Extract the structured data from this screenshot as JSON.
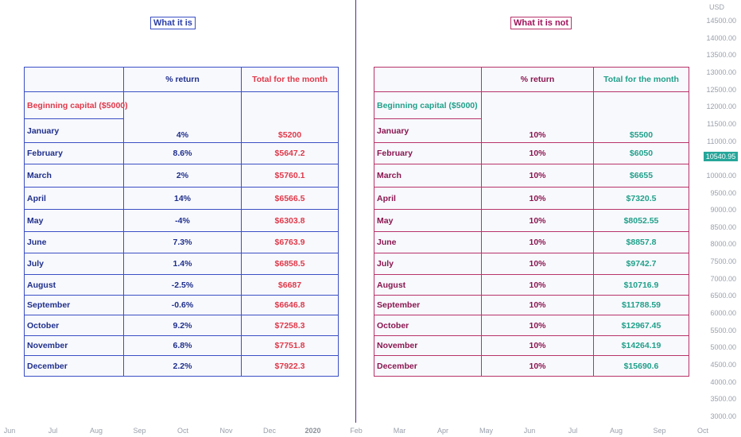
{
  "labels": {
    "left": "What it is",
    "right": "What it is not"
  },
  "left_table": {
    "header": [
      "",
      "% return",
      "Total for the month"
    ],
    "beginning": "Beginning capital ($5000)",
    "rows": [
      [
        "January",
        "4%",
        "$5200"
      ],
      [
        "February",
        "8.6%",
        "$5647.2"
      ],
      [
        "March",
        "2%",
        "$5760.1"
      ],
      [
        "April",
        "14%",
        "$6566.5"
      ],
      [
        "May",
        "-4%",
        "$6303.8"
      ],
      [
        "June",
        "7.3%",
        "$6763.9"
      ],
      [
        "July",
        "1.4%",
        "$6858.5"
      ],
      [
        "August",
        "-2.5%",
        "$6687"
      ],
      [
        "September",
        "-0.6%",
        "$6646.8"
      ],
      [
        "October",
        "9.2%",
        "$7258.3"
      ],
      [
        "November",
        "6.8%",
        "$7751.8"
      ],
      [
        "December",
        "2.2%",
        "$7922.3"
      ]
    ]
  },
  "right_table": {
    "header": [
      "",
      "% return",
      "Total for the month"
    ],
    "beginning": "Beginning capital ($5000)",
    "rows": [
      [
        "January",
        "10%",
        "$5500"
      ],
      [
        "February",
        "10%",
        "$6050"
      ],
      [
        "March",
        "10%",
        "$6655"
      ],
      [
        "April",
        "10%",
        "$7320.5"
      ],
      [
        "May",
        "10%",
        "$8052.55"
      ],
      [
        "June",
        "10%",
        "$8857.8"
      ],
      [
        "July",
        "10%",
        "$9742.7"
      ],
      [
        "August",
        "10%",
        "$10716.9"
      ],
      [
        "September",
        "10%",
        "$11788.59"
      ],
      [
        "October",
        "10%",
        "$12967.45"
      ],
      [
        "November",
        "10%",
        "$14264.19"
      ],
      [
        "December",
        "10%",
        "$15690.6"
      ]
    ]
  },
  "chart_data": {
    "type": "table",
    "currency": "USD",
    "y_ticks": [
      "14500.00",
      "14000.00",
      "13500.00",
      "13000.00",
      "12500.00",
      "12000.00",
      "11500.00",
      "11000.00",
      "10500.00",
      "10000.00",
      "9500.00",
      "9000.00",
      "8500.00",
      "8000.00",
      "7500.00",
      "7000.00",
      "6500.00",
      "6000.00",
      "5500.00",
      "5000.00",
      "4500.00",
      "4000.00",
      "3500.00",
      "3000.00"
    ],
    "ylim": [
      3000,
      14500
    ],
    "last_price": "10540.95",
    "last_price_value": 10540.95,
    "x_ticks": [
      "Jun",
      "Jul",
      "Aug",
      "Sep",
      "Oct",
      "Nov",
      "Dec",
      "2020",
      "Feb",
      "Mar",
      "Apr",
      "May",
      "Jun",
      "Jul",
      "Aug",
      "Sep",
      "Oct"
    ],
    "x_bold": "2020"
  },
  "colors": {
    "left_accent": "#3b4fc4",
    "right_accent": "#b8336a",
    "red_text": "#e0394a",
    "green_text": "#21a08a",
    "price_badge": "#26a69a"
  }
}
